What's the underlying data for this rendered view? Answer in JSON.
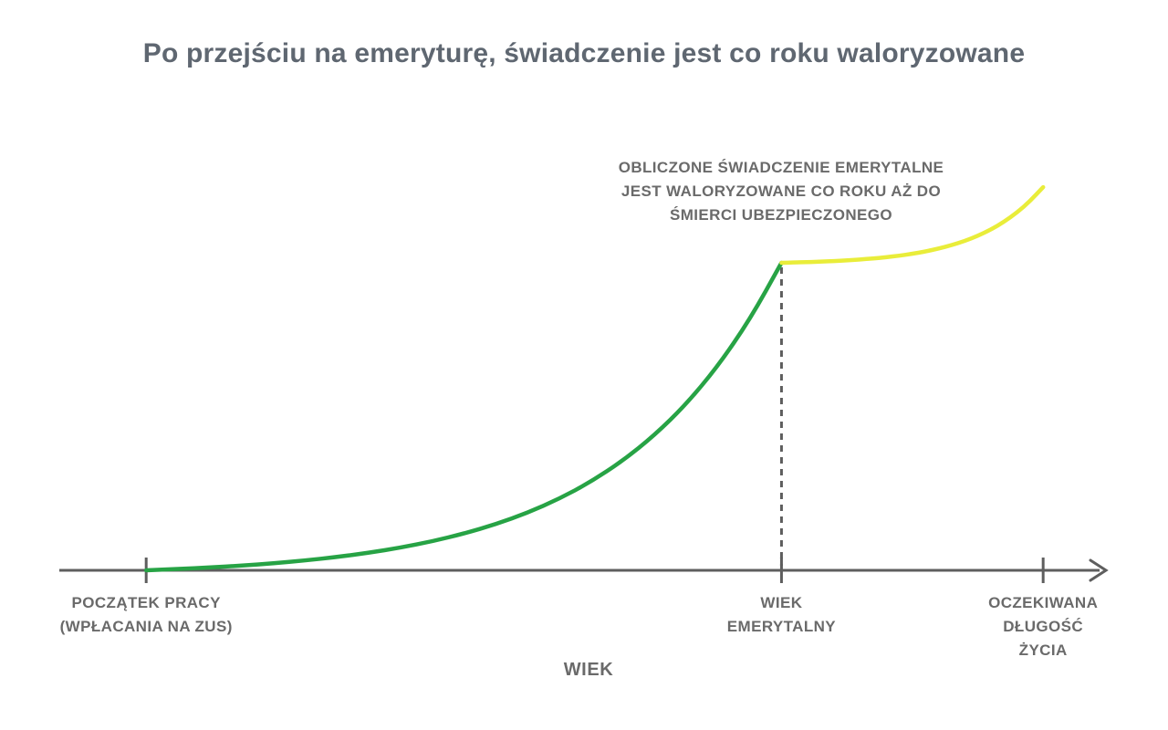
{
  "chart_data": {
    "type": "line",
    "title": "Po przejściu na emeryturę, świadczenie jest co roku waloryzowane",
    "xlabel": "WIEK",
    "ylabel": "",
    "grid": false,
    "legend": "none",
    "ylim": [
      0,
      1.3
    ],
    "title_color": "#5f6771",
    "label_color": "#6a6a6a",
    "axis_color": "#5e5e5e",
    "annotation": {
      "text": "OBLICZONE ŚWIADCZENIE EMERYTALNE\nJEST WALORYZOWANE CO ROKU AŻ DO\nŚMIERCI UBEZPIECZONEGO"
    },
    "x_ticks": [
      {
        "pos": 0.083,
        "label": "POCZĄTEK PRACY\n(WPŁACANIA NA ZUS)"
      },
      {
        "pos": 0.69,
        "label": "WIEK\nEMERYTALNY"
      },
      {
        "pos": 0.94,
        "label": "OCZEKIWANA\nDŁUGOŚĆ\nŻYCIA"
      }
    ],
    "marker": {
      "at_pos": 0.69,
      "style": "dashed-vertical",
      "from_value": 1.0,
      "to_value": 0
    },
    "series": [
      {
        "name": "kapital-skladkowy-do-emerytury",
        "color": "#27a345",
        "points": [
          [
            0.083,
            0.0
          ],
          [
            0.1134,
            0.0041
          ],
          [
            0.1437,
            0.0092
          ],
          [
            0.1741,
            0.0153
          ],
          [
            0.2044,
            0.0229
          ],
          [
            0.2348,
            0.0321
          ],
          [
            0.2651,
            0.0433
          ],
          [
            0.2955,
            0.057
          ],
          [
            0.3258,
            0.0737
          ],
          [
            0.3562,
            0.0942
          ],
          [
            0.3865,
            0.1192
          ],
          [
            0.4169,
            0.1497
          ],
          [
            0.4472,
            0.187
          ],
          [
            0.4776,
            0.2325
          ],
          [
            0.5079,
            0.2882
          ],
          [
            0.5383,
            0.3561
          ],
          [
            0.5686,
            0.4391
          ],
          [
            0.599,
            0.5404
          ],
          [
            0.6293,
            0.6642
          ],
          [
            0.6597,
            0.8154
          ],
          [
            0.69,
            1.0
          ]
        ]
      },
      {
        "name": "swiadczenie-waloryzowane-co-roku",
        "color": "#e9ed3a",
        "points": [
          [
            0.69,
            1.0
          ],
          [
            0.7025,
            1.001
          ],
          [
            0.715,
            1.0023
          ],
          [
            0.7275,
            1.0038
          ],
          [
            0.74,
            1.0056
          ],
          [
            0.7525,
            1.0079
          ],
          [
            0.765,
            1.0107
          ],
          [
            0.7775,
            1.014
          ],
          [
            0.79,
            1.0181
          ],
          [
            0.8025,
            1.0232
          ],
          [
            0.815,
            1.0293
          ],
          [
            0.8275,
            1.0368
          ],
          [
            0.84,
            1.046
          ],
          [
            0.8525,
            1.0572
          ],
          [
            0.865,
            1.0709
          ],
          [
            0.8775,
            1.0876
          ],
          [
            0.89,
            1.108
          ],
          [
            0.9025,
            1.1329
          ],
          [
            0.915,
            1.1634
          ],
          [
            0.9275,
            1.2006
          ],
          [
            0.94,
            1.246
          ]
        ]
      }
    ]
  }
}
